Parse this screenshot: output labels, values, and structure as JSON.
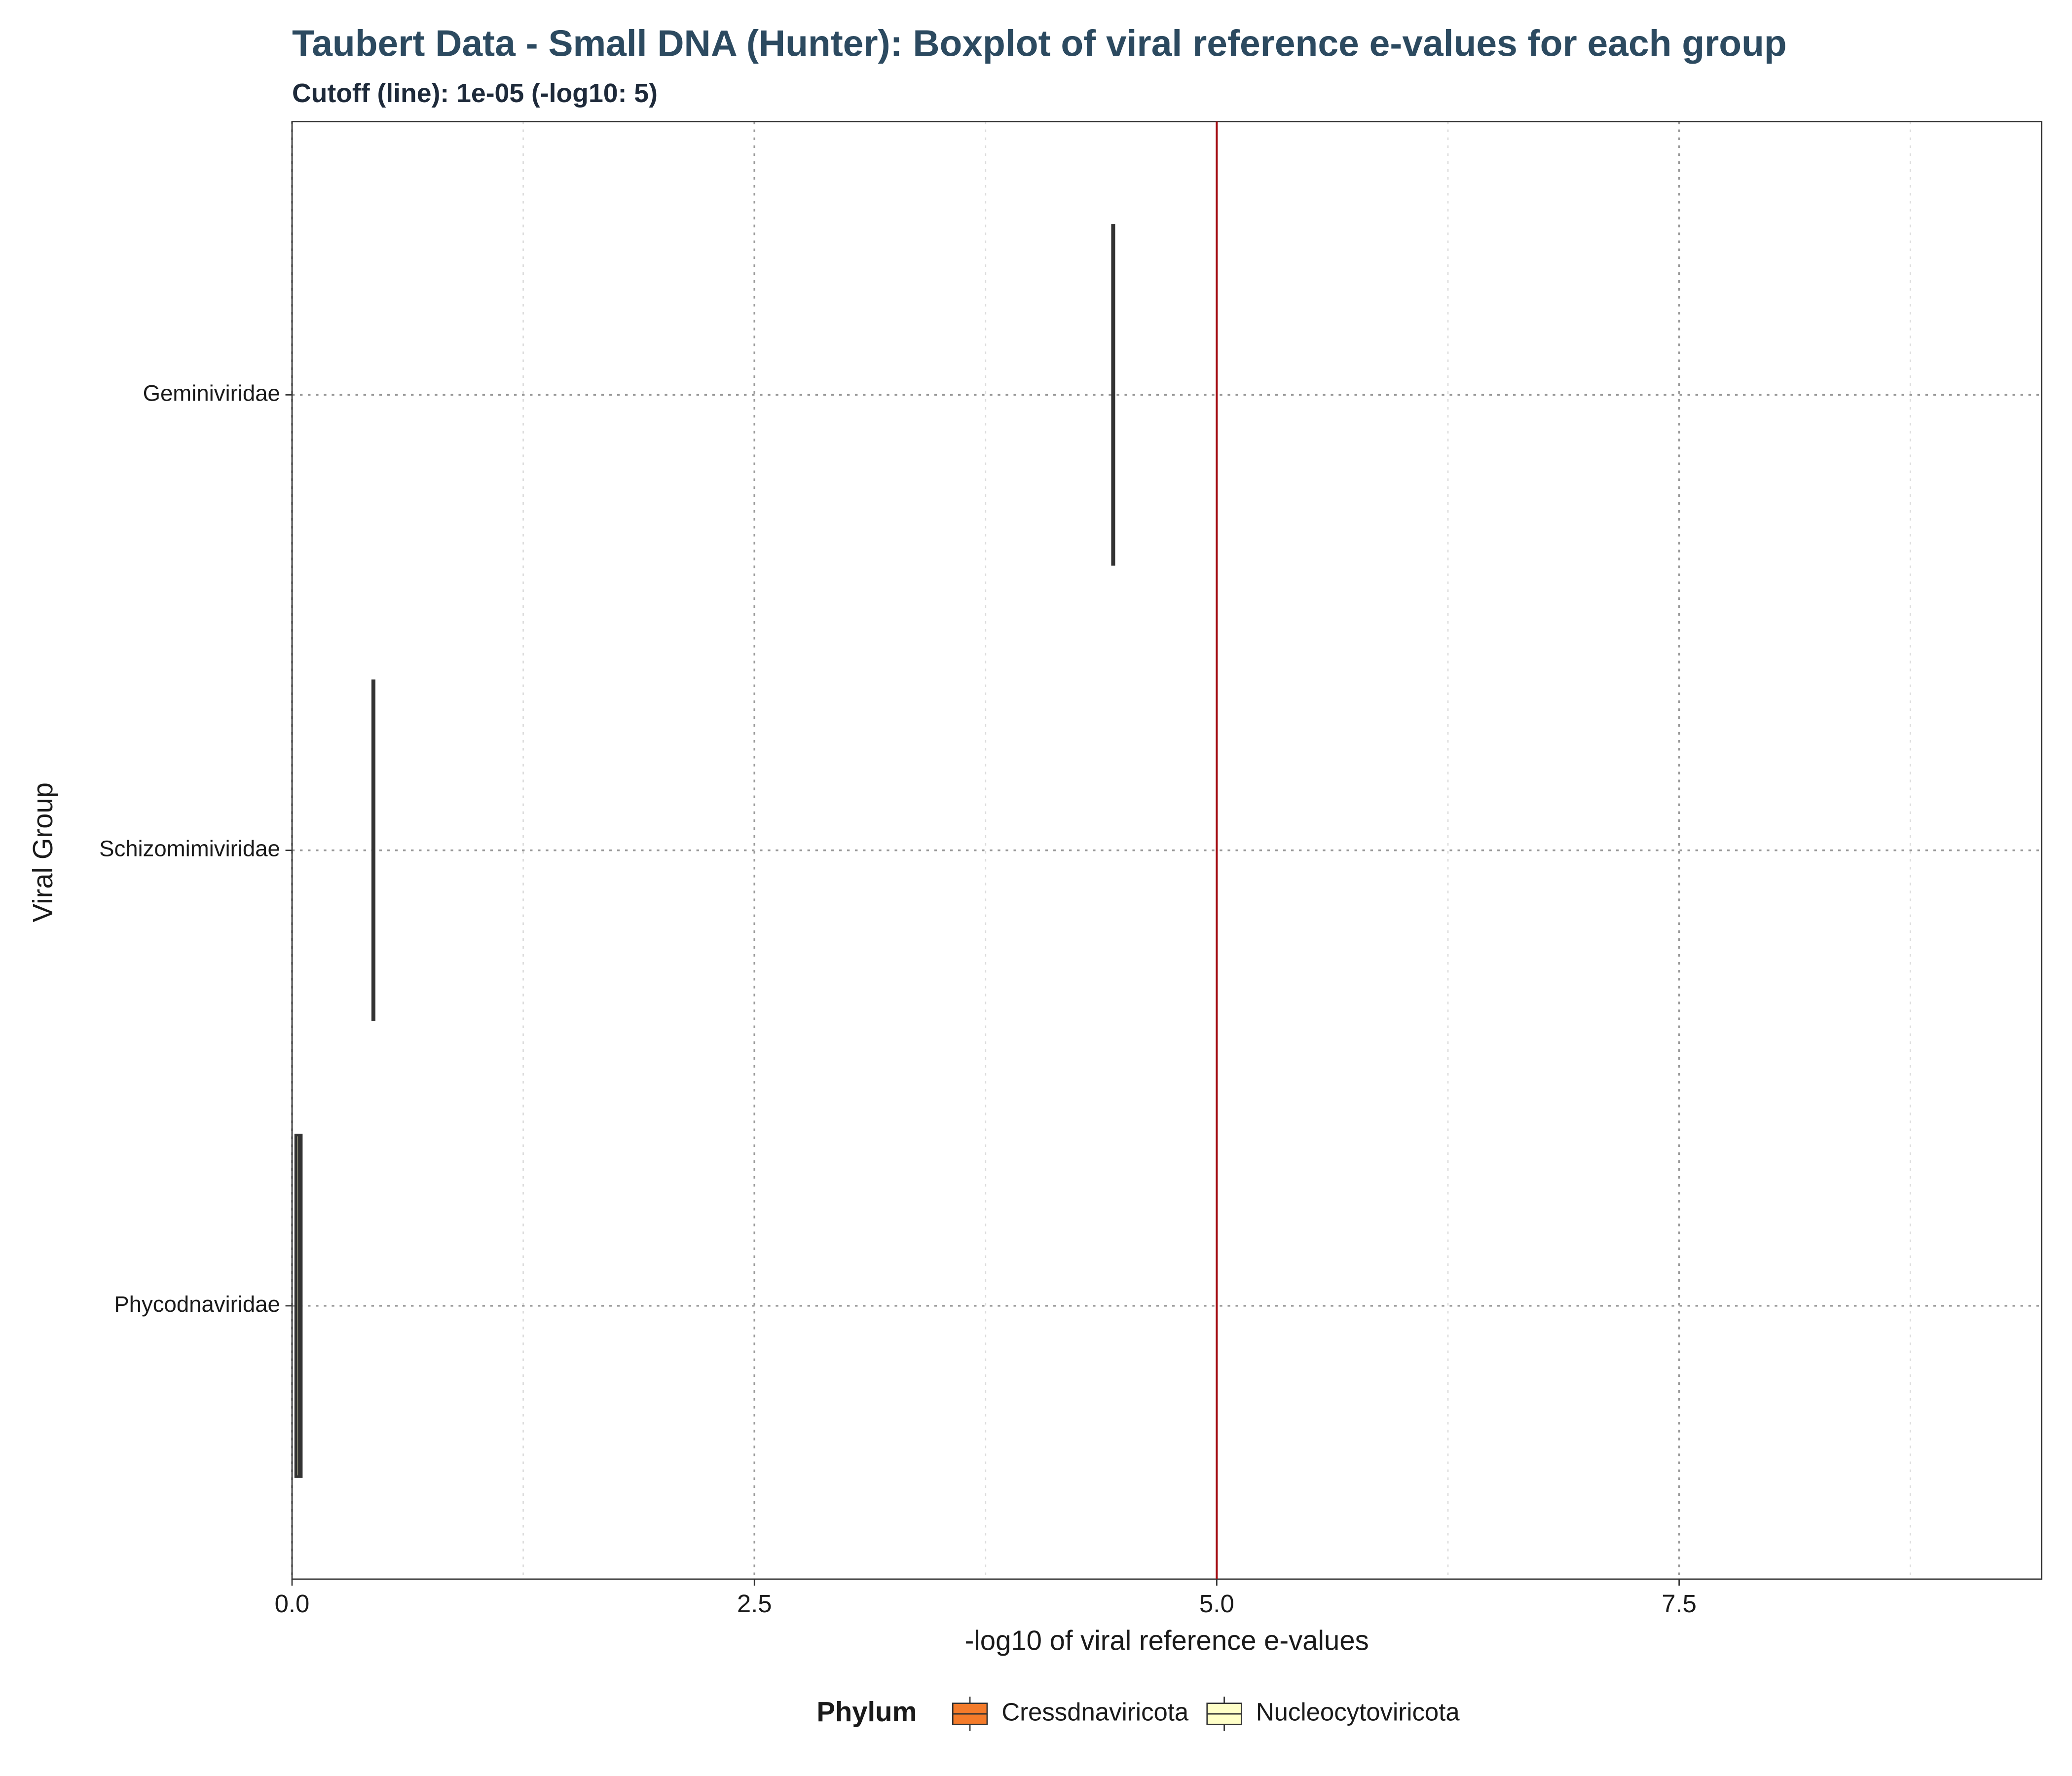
{
  "chart_data": {
    "type": "boxplot",
    "title": "Taubert Data - Small DNA (Hunter): Boxplot of viral reference e-values for each group",
    "subtitle": "Cutoff (line): 1e-05 (-log10: 5)",
    "x_label": "-log10 of viral reference e-values",
    "y_label": "Viral Group",
    "categories": [
      "Geminiviridae",
      "Schizomimiviridae",
      "Phycodnaviridae"
    ],
    "legend_title": "Phylum",
    "legend_position": "bottom",
    "series": [
      {
        "name": "Cressdnaviricota",
        "color": "#f47b2a",
        "boxes": [
          {
            "min": 4.44,
            "q1": 4.44,
            "median": 4.44,
            "q3": 4.44,
            "max": 4.44
          },
          null,
          null
        ]
      },
      {
        "name": "Nucleocytoviricota",
        "color": "#ffffc8",
        "boxes": [
          null,
          {
            "min": 0.44,
            "q1": 0.44,
            "median": 0.44,
            "q3": 0.44,
            "max": 0.44
          },
          {
            "min": 0.02,
            "q1": 0.02,
            "median": 0.04,
            "q3": 0.05,
            "max": 0.05
          }
        ]
      }
    ],
    "cutoff": 5,
    "cutoff_color": "#a50f15",
    "xlim": [
      0,
      9.46
    ],
    "xticks": [
      {
        "value": 0,
        "label": "0.0"
      },
      2.5,
      {
        "value": 5,
        "label": "5.0"
      },
      7.5
    ],
    "minor_xticks": [
      1.25,
      3.75,
      6.25,
      8.75
    ],
    "grid": true
  }
}
